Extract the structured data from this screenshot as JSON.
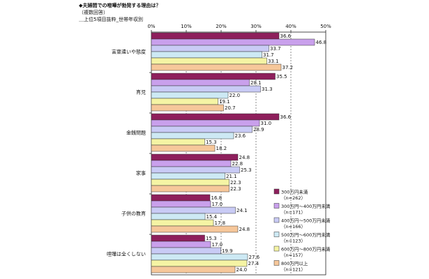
{
  "title": "◆夫婦間での喧嘩が勃発する理由は？",
  "subtitle": "（複数回答）",
  "note": "＿上位5項目抜粋_世帯年収別",
  "colors": [
    "#8e1f5c",
    "#c9a0ec",
    "#c9cbf5",
    "#cde9f4",
    "#f5f4a4",
    "#f6c79a"
  ],
  "chart_data": {
    "type": "bar",
    "orientation": "horizontal",
    "xlim": [
      0,
      50
    ],
    "x_ticks": [
      "0%",
      "10%",
      "20%",
      "30%",
      "40%",
      "50%"
    ],
    "categories": [
      "言葉遣いや態度",
      "育児",
      "金銭問題",
      "家事",
      "子供の教育",
      "喧嘩は全くしない"
    ],
    "series": [
      {
        "name": "300万円未満",
        "n": "（n=262）",
        "values": [
          36.6,
          35.5,
          36.6,
          24.8,
          16.8,
          15.3
        ]
      },
      {
        "name": "300万円～400万円未満",
        "n": "（n=171）",
        "values": [
          46.8,
          28.1,
          31.0,
          22.8,
          17.0,
          17.0
        ]
      },
      {
        "name": "400万円～500万円未満",
        "n": "（n=166）",
        "values": [
          33.7,
          31.3,
          28.9,
          25.3,
          24.1,
          19.9
        ]
      },
      {
        "name": "500万円～600万円未満",
        "n": "（n=123）",
        "values": [
          31.7,
          22.0,
          23.6,
          21.1,
          15.4,
          27.6
        ]
      },
      {
        "name": "600万円～800万円未満",
        "n": "（n=157）",
        "values": [
          33.1,
          19.1,
          15.3,
          22.3,
          17.8,
          27.4
        ]
      },
      {
        "name": "800万円以上",
        "n": "（n=121）",
        "values": [
          37.2,
          20.7,
          18.2,
          22.3,
          24.8,
          24.0
        ]
      }
    ],
    "data_labels": [
      [
        "36.6",
        "35.5",
        "36.6",
        "24.8",
        "16.8",
        "15.3"
      ],
      [
        "46.8",
        "28.1",
        "31.0",
        "22.8",
        "17.0",
        "17.0"
      ],
      [
        "33.7",
        "31.3",
        "28.9",
        "25.3",
        "24.1",
        "19.9"
      ],
      [
        "31.7",
        "22.0",
        "23.6",
        "21.1",
        "15.4",
        "27.6"
      ],
      [
        "33.1",
        "19.1",
        "15.3",
        "22.3",
        "17.8",
        "27.4"
      ],
      [
        "37.2",
        "20.7",
        "18.2",
        "22.3",
        "24.8",
        "24.0"
      ]
    ],
    "legend_position": "lower-right, inside plot",
    "grid": "vertical dashed lines at each 10%"
  }
}
